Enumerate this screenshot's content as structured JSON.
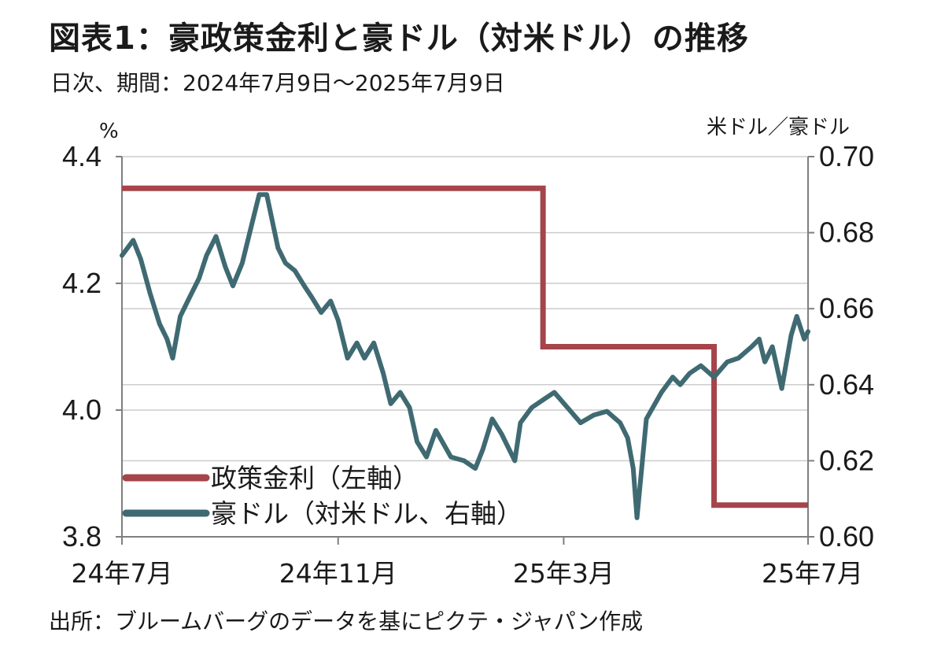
{
  "header": {
    "title": "図表1：豪政策金利と豪ドル（対米ドル）の推移",
    "subtitle": "日次、期間：2024年7月9日～2025年7月9日"
  },
  "footer": {
    "source": "出所：ブルームバーグのデータを基にピクテ・ジャパン作成"
  },
  "chart_data": {
    "type": "line",
    "title": "図表1：豪政策金利と豪ドル（対米ドル）の推移",
    "subtitle": "日次、期間：2024年7月9日～2025年7月9日",
    "y_left": {
      "unit": "%",
      "range": [
        3.8,
        4.4
      ],
      "ticks": [
        "4.4",
        "4.2",
        "4.0",
        "3.8"
      ]
    },
    "y_right": {
      "unit": "米ドル／豪ドル",
      "range": [
        0.6,
        0.7
      ],
      "ticks": [
        "0.70",
        "0.68",
        "0.66",
        "0.64",
        "0.62",
        "0.60"
      ]
    },
    "x_ticks": [
      "24年7月",
      "24年11月",
      "25年3月",
      "25年7月"
    ],
    "grid": "horizontal",
    "legend_placement": "bottom-left",
    "colors": {
      "policy_rate": "#a5444a",
      "aud_usd": "#3f6a72",
      "grid": "#cccccc",
      "axis": "#7f7f7f"
    },
    "series": [
      {
        "name": "政策金利（左軸）",
        "axis": "left",
        "step": true,
        "x": [
          "2024-07-09",
          "2025-02-18",
          "2025-05-20",
          "2025-07-09"
        ],
        "values": [
          4.35,
          4.1,
          3.85,
          3.85
        ]
      },
      {
        "name": "豪ドル（対米ドル、右軸）",
        "axis": "right",
        "x": [
          "2024-07-09",
          "2024-07-15",
          "2024-07-19",
          "2024-07-24",
          "2024-07-29",
          "2024-08-02",
          "2024-08-05",
          "2024-08-09",
          "2024-08-13",
          "2024-08-19",
          "2024-08-23",
          "2024-08-28",
          "2024-09-02",
          "2024-09-06",
          "2024-09-11",
          "2024-09-16",
          "2024-09-20",
          "2024-09-24",
          "2024-09-30",
          "2024-10-04",
          "2024-10-09",
          "2024-10-14",
          "2024-10-18",
          "2024-10-23",
          "2024-10-28",
          "2024-11-01",
          "2024-11-06",
          "2024-11-11",
          "2024-11-15",
          "2024-11-20",
          "2024-11-25",
          "2024-11-29",
          "2024-12-04",
          "2024-12-09",
          "2024-12-13",
          "2024-12-18",
          "2024-12-23",
          "2024-12-31",
          "2025-01-07",
          "2025-01-13",
          "2025-01-17",
          "2025-01-22",
          "2025-01-27",
          "2025-02-03",
          "2025-02-06",
          "2025-02-12",
          "2025-02-18",
          "2025-02-24",
          "2025-03-03",
          "2025-03-10",
          "2025-03-17",
          "2025-03-24",
          "2025-03-31",
          "2025-04-04",
          "2025-04-07",
          "2025-04-09",
          "2025-04-14",
          "2025-04-22",
          "2025-04-28",
          "2025-05-02",
          "2025-05-07",
          "2025-05-13",
          "2025-05-20",
          "2025-05-27",
          "2025-06-02",
          "2025-06-09",
          "2025-06-13",
          "2025-06-16",
          "2025-06-20",
          "2025-06-25",
          "2025-06-30",
          "2025-07-03",
          "2025-07-07",
          "2025-07-09"
        ],
        "values": [
          0.674,
          0.678,
          0.673,
          0.664,
          0.656,
          0.652,
          0.647,
          0.658,
          0.662,
          0.668,
          0.674,
          0.679,
          0.671,
          0.666,
          0.672,
          0.682,
          0.69,
          0.69,
          0.676,
          0.672,
          0.67,
          0.666,
          0.663,
          0.659,
          0.662,
          0.657,
          0.647,
          0.651,
          0.647,
          0.651,
          0.643,
          0.635,
          0.638,
          0.634,
          0.625,
          0.621,
          0.628,
          0.621,
          0.62,
          0.618,
          0.623,
          0.631,
          0.627,
          0.62,
          0.63,
          0.634,
          0.636,
          0.638,
          0.634,
          0.63,
          0.632,
          0.633,
          0.63,
          0.626,
          0.618,
          0.605,
          0.631,
          0.638,
          0.642,
          0.64,
          0.643,
          0.645,
          0.642,
          0.646,
          0.647,
          0.65,
          0.652,
          0.646,
          0.65,
          0.639,
          0.653,
          0.658,
          0.652,
          0.654
        ]
      }
    ]
  }
}
